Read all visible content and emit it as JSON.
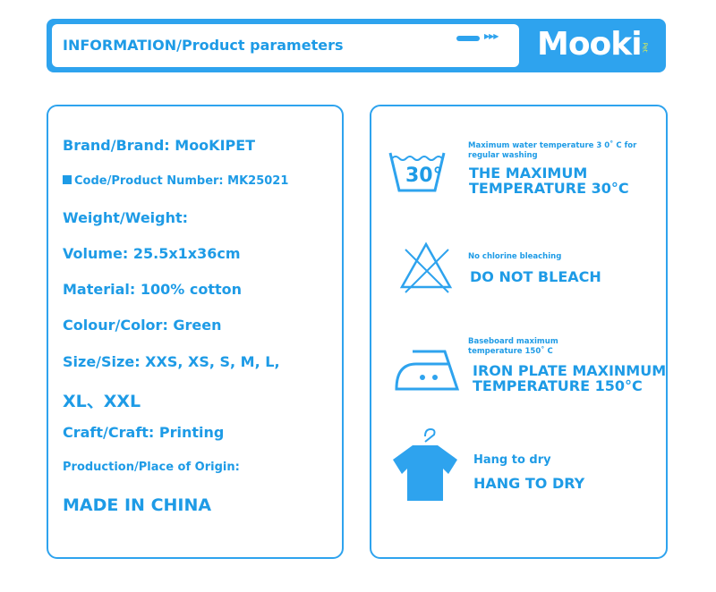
{
  "banner": {
    "title": "INFORMATION/Product parameters",
    "logo": "Mooki",
    "logo_sub": "Pet"
  },
  "info": {
    "brand": "Brand/Brand: MooKIPET",
    "code": "Code/Product Number: MK25021",
    "weight": "Weight/Weight:",
    "volume": "Volume: 25.5x1x36cm",
    "material": "Material: 100% cotton",
    "colour": "Colour/Color: Green",
    "size": "Size/Size: XXS, XS, S, M, L,",
    "size2": "XL、XXL",
    "craft": "Craft/Craft: Printing",
    "origin_label": "Production/Place of Origin:",
    "origin": "MADE IN CHINA"
  },
  "care": [
    {
      "icon": "wash-30-icon",
      "icon_text": "30°",
      "note": "Maximum water temperature 3 0˚  C for regular washing",
      "title": "THE MAXIMUM TEMPERATURE 30°C"
    },
    {
      "icon": "no-bleach-icon",
      "note": "No chlorine bleaching",
      "title": "DO NOT BLEACH"
    },
    {
      "icon": "iron-icon",
      "note": "Baseboard maximum temperature 150˚  C",
      "title": "IRON PLATE MAXINMUM TEMPERATURE 150°C"
    },
    {
      "icon": "hang-dry-icon",
      "note": "Hang to dry",
      "title": "HANG TO DRY"
    }
  ],
  "colors": {
    "accent": "#2ea3ee",
    "text": "#1e9be6"
  }
}
